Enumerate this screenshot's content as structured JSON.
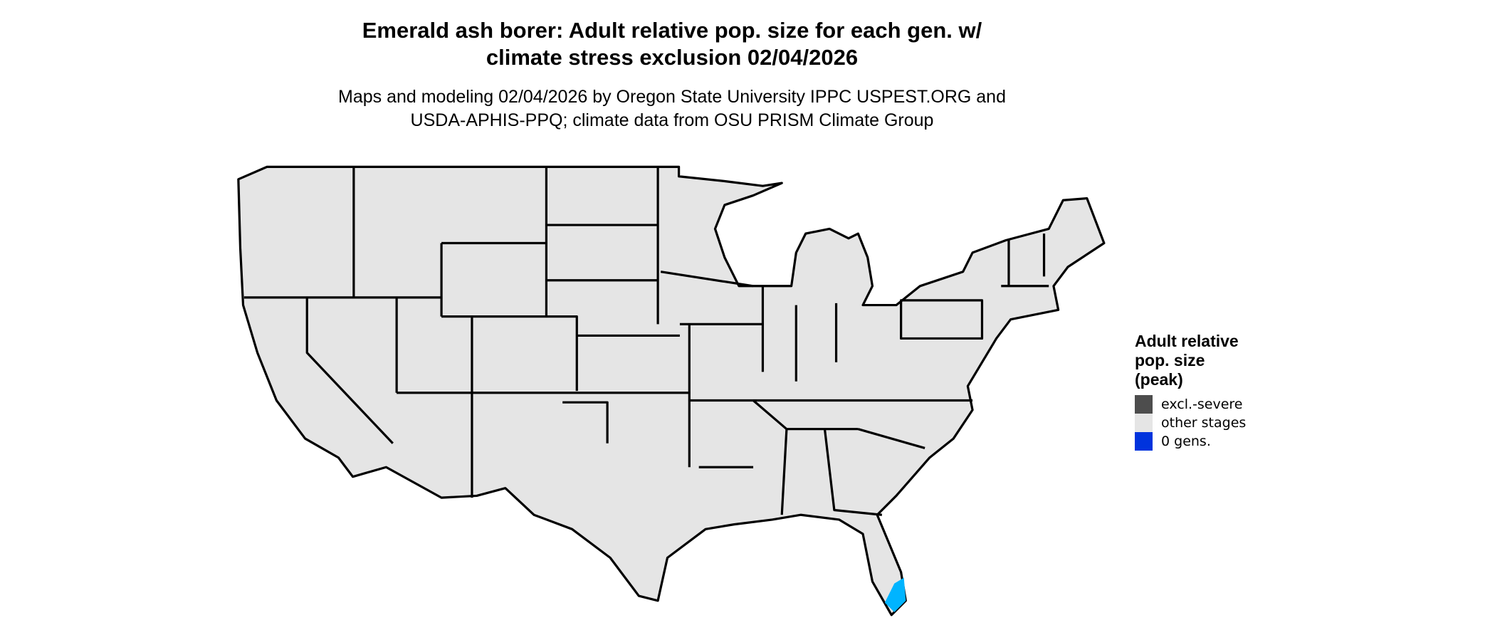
{
  "title": [
    "Emerald ash borer: Adult relative pop. size for each gen. w/",
    "climate stress exclusion 02/04/2026"
  ],
  "subtitle": [
    "Maps and modeling 02/04/2026 by Oregon State University IPPC USPEST.ORG and",
    "USDA-APHIS-PPQ; climate data from OSU PRISM Climate Group"
  ],
  "legend": {
    "title": [
      "Adult relative",
      "pop. size",
      "(peak)"
    ],
    "items": [
      {
        "label": "excl.-severe",
        "color": "#4d4d4d"
      },
      {
        "label": "other stages",
        "color": "#e5e5e5"
      },
      {
        "label": "0 gens.",
        "color": "#0033dd"
      }
    ]
  },
  "map": {
    "land_color": "#e5e5e5",
    "border_color": "#000000",
    "south_florida_color": "#00b4ff"
  }
}
